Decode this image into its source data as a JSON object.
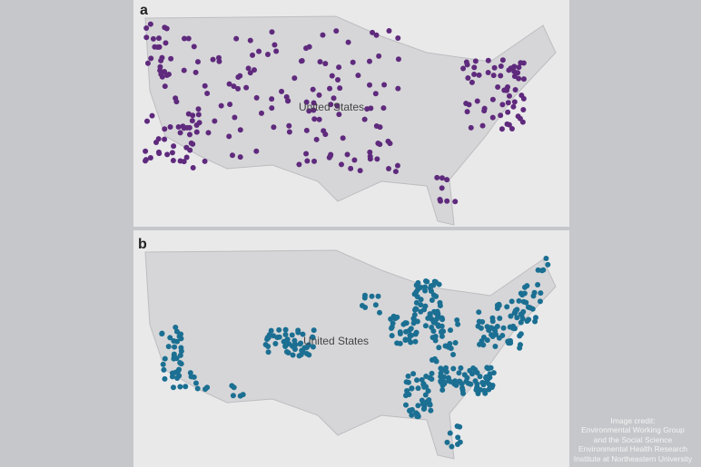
{
  "panels": [
    {
      "letter": "a",
      "label": "United States"
    },
    {
      "letter": "b",
      "label": "United States"
    }
  ],
  "credit": [
    "Image credit:",
    "Environmental Working Group",
    "and the Social Science",
    "Environmental Health Research",
    "Institute at Northeastern University"
  ]
}
